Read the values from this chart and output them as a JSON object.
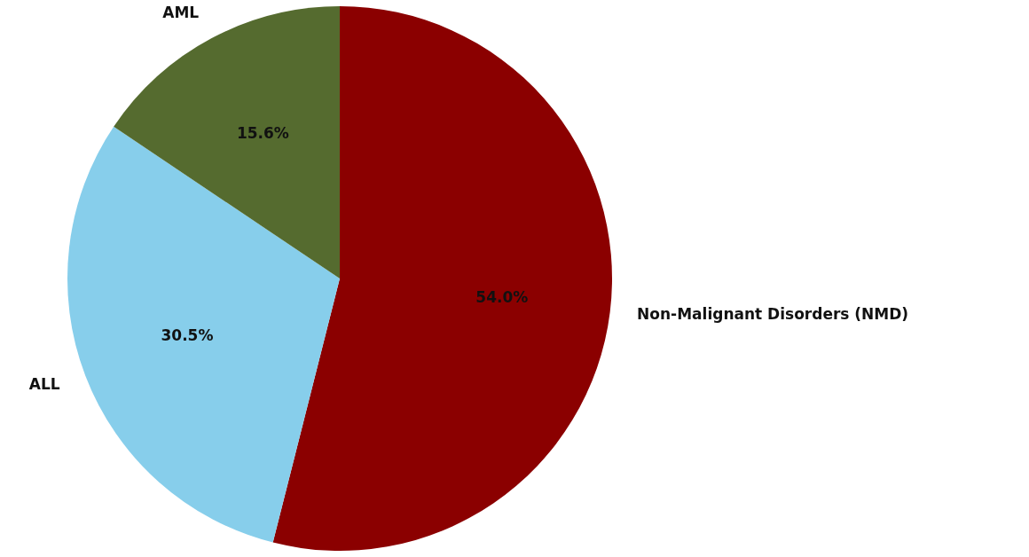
{
  "chart_data": {
    "type": "pie",
    "categories": [
      "Non-Malignant Disorders (NMD)",
      "ALL",
      "AML"
    ],
    "values": [
      54.0,
      30.5,
      15.6
    ],
    "colors": [
      "#8b0000",
      "#87ceeb",
      "#556b2f"
    ],
    "value_labels": [
      "54.0%",
      "30.5%",
      "15.6%"
    ]
  }
}
